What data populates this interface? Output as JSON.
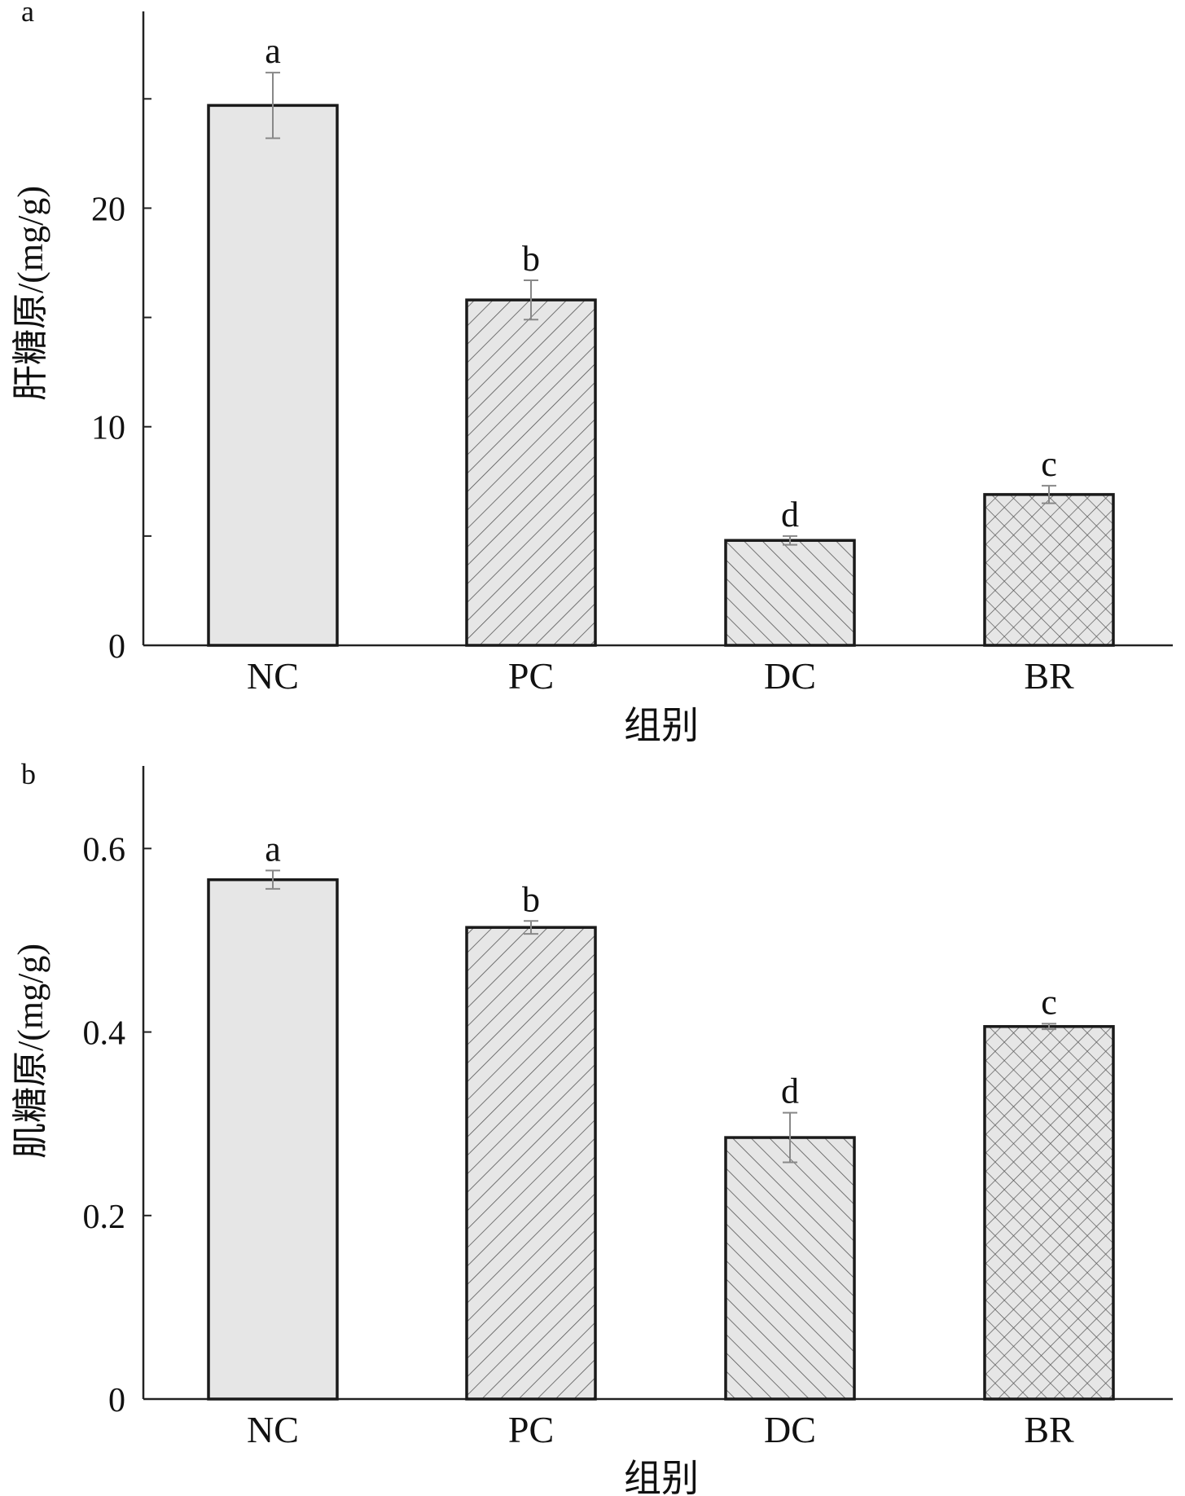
{
  "chart_data": [
    {
      "panel": "a",
      "type": "bar",
      "categories": [
        "NC",
        "PC",
        "DC",
        "BR"
      ],
      "values": [
        24.7,
        15.8,
        4.8,
        6.9
      ],
      "errors": [
        1.5,
        0.9,
        0.2,
        0.4
      ],
      "significance": [
        "a",
        "b",
        "d",
        "c"
      ],
      "patterns": [
        "solid",
        "diag-up",
        "diag-down",
        "crosshatch"
      ],
      "xlabel": "组别",
      "ylabel": "肝糖原/(mg/g)",
      "ylim": [
        0,
        29
      ],
      "yticks": [
        0,
        10,
        20
      ],
      "yticks_minor": [
        5,
        15,
        25
      ],
      "ytick_labels": [
        "0",
        "10",
        "20"
      ],
      "grid": false,
      "legend": "none"
    },
    {
      "panel": "b",
      "type": "bar",
      "categories": [
        "NC",
        "PC",
        "DC",
        "BR"
      ],
      "values": [
        0.566,
        0.514,
        0.285,
        0.406
      ],
      "errors": [
        0.01,
        0.007,
        0.027,
        0.003
      ],
      "significance": [
        "a",
        "b",
        "d",
        "c"
      ],
      "patterns": [
        "solid",
        "diag-up",
        "diag-down",
        "crosshatch"
      ],
      "xlabel": "组别",
      "ylabel": "肌糖原/(mg/g)",
      "ylim": [
        0,
        0.69
      ],
      "yticks": [
        0,
        0.2,
        0.4,
        0.6
      ],
      "yticks_minor": [],
      "ytick_labels": [
        "0",
        "0.2",
        "0.4",
        "0.6"
      ],
      "grid": false,
      "legend": "none"
    }
  ],
  "colors": {
    "bar_fill": "#e6e6e6",
    "bar_outline": "#1a1a1a",
    "hatch": "#555555",
    "error_bar": "#888888",
    "axis": "#222222"
  }
}
